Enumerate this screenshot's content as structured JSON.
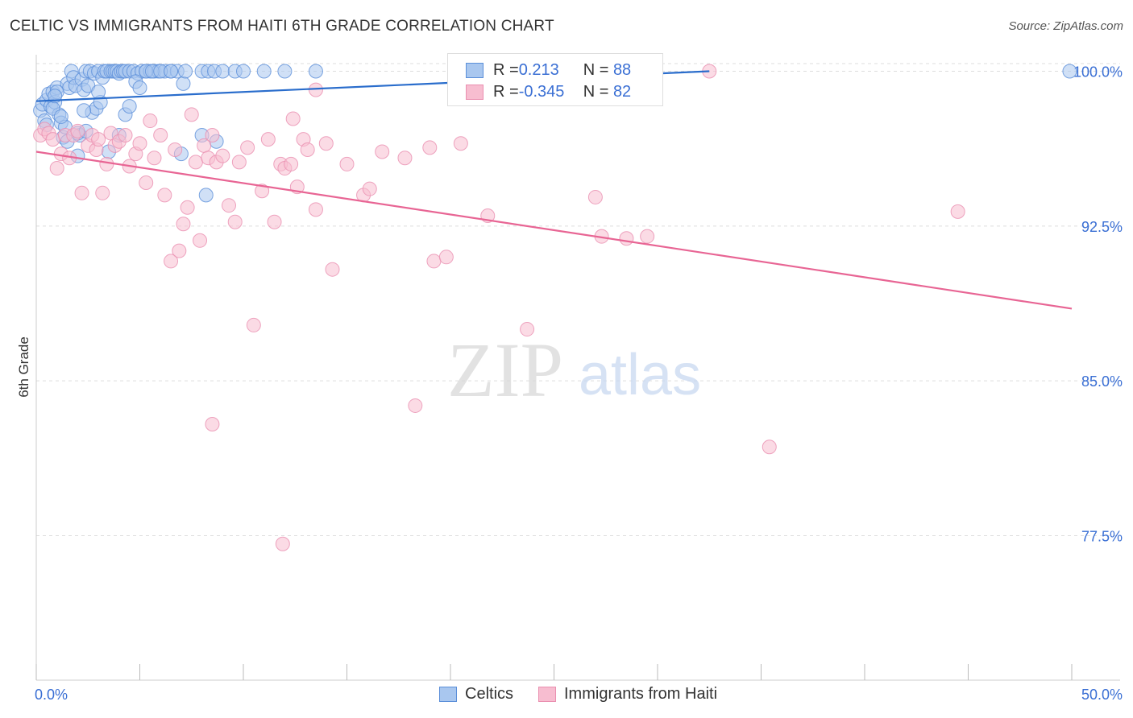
{
  "title": "CELTIC VS IMMIGRANTS FROM HAITI 6TH GRADE CORRELATION CHART",
  "source": "Source: ZipAtlas.com",
  "watermark": {
    "zip": "ZIP",
    "atlas": "atlas"
  },
  "colors": {
    "celtic_fill": "#a9c7ef",
    "celtic_stroke": "#5b8fd9",
    "celtic_line": "#2a6dcc",
    "haiti_fill": "#f7bdd0",
    "haiti_stroke": "#ea8fb0",
    "haiti_line": "#e86594",
    "axis_label": "#3a6fd4",
    "grid": "#dddddd"
  },
  "legend": {
    "rows": [
      {
        "r_label": "R =",
        "r_value": " 0.213",
        "n_label": "N =",
        "n_value": "88"
      },
      {
        "r_label": "R =",
        "r_value": "-0.345",
        "n_label": "N =",
        "n_value": "82"
      }
    ]
  },
  "chart_data": {
    "type": "scatter",
    "title": "CELTIC VS IMMIGRANTS FROM HAITI 6TH GRADE CORRELATION CHART",
    "xlabel": "",
    "ylabel": "6th Grade",
    "xlim": [
      0,
      50
    ],
    "ylim": [
      70.5,
      100.8
    ],
    "x_tick_labels": [
      "0.0%",
      "50.0%"
    ],
    "y_ticks": [
      77.5,
      85.0,
      92.5,
      100.0
    ],
    "y_tick_labels": [
      "77.5%",
      "85.0%",
      "92.5%",
      "100.0%"
    ],
    "grid": true,
    "legend_position": "top-center",
    "series": [
      {
        "name": "Celtics",
        "r": 0.213,
        "n": 88,
        "trend": {
          "x": [
            0,
            32.5
          ],
          "y": [
            98.55,
            100.0
          ]
        },
        "points": [
          [
            0.2,
            98.1
          ],
          [
            0.3,
            98.4
          ],
          [
            0.4,
            97.6
          ],
          [
            0.5,
            98.6
          ],
          [
            0.6,
            98.9
          ],
          [
            0.7,
            98.3
          ],
          [
            0.8,
            99.0
          ],
          [
            0.9,
            98.5
          ],
          [
            1.0,
            99.2
          ],
          [
            1.1,
            97.9
          ],
          [
            1.2,
            97.5
          ],
          [
            1.3,
            96.8
          ],
          [
            1.4,
            97.3
          ],
          [
            1.5,
            99.4
          ],
          [
            1.6,
            99.2
          ],
          [
            1.7,
            100.0
          ],
          [
            1.8,
            99.7
          ],
          [
            1.9,
            99.3
          ],
          [
            2.0,
            95.9
          ],
          [
            2.1,
            96.9
          ],
          [
            2.2,
            99.6
          ],
          [
            2.3,
            99.1
          ],
          [
            2.4,
            100.0
          ],
          [
            2.5,
            99.3
          ],
          [
            2.6,
            100.0
          ],
          [
            2.7,
            98.0
          ],
          [
            2.8,
            99.9
          ],
          [
            2.9,
            98.2
          ],
          [
            3.0,
            100.0
          ],
          [
            3.1,
            98.5
          ],
          [
            3.2,
            99.7
          ],
          [
            3.3,
            100.0
          ],
          [
            3.4,
            100.0
          ],
          [
            3.5,
            96.1
          ],
          [
            3.6,
            100.0
          ],
          [
            3.7,
            100.0
          ],
          [
            3.8,
            100.0
          ],
          [
            3.9,
            100.0
          ],
          [
            4.0,
            99.9
          ],
          [
            4.1,
            100.0
          ],
          [
            4.2,
            100.0
          ],
          [
            4.3,
            100.0
          ],
          [
            4.5,
            100.0
          ],
          [
            4.7,
            100.0
          ],
          [
            4.9,
            99.9
          ],
          [
            5.1,
            100.0
          ],
          [
            5.3,
            100.0
          ],
          [
            5.5,
            100.0
          ],
          [
            5.7,
            100.0
          ],
          [
            5.9,
            100.0
          ],
          [
            6.2,
            100.0
          ],
          [
            6.5,
            100.0
          ],
          [
            6.8,
            100.0
          ],
          [
            7.1,
            99.4
          ],
          [
            4.0,
            96.9
          ],
          [
            4.3,
            97.9
          ],
          [
            4.5,
            98.3
          ],
          [
            4.8,
            99.5
          ],
          [
            5.0,
            99.2
          ],
          [
            5.3,
            100.0
          ],
          [
            5.6,
            100.0
          ],
          [
            6.0,
            100.0
          ],
          [
            6.5,
            100.0
          ],
          [
            7.2,
            100.0
          ],
          [
            8.0,
            100.0
          ],
          [
            8.3,
            100.0
          ],
          [
            8.6,
            100.0
          ],
          [
            9.0,
            100.0
          ],
          [
            9.6,
            100.0
          ],
          [
            10.0,
            100.0
          ],
          [
            11.0,
            100.0
          ],
          [
            12.0,
            100.0
          ],
          [
            13.5,
            100.0
          ],
          [
            7.0,
            96.0
          ],
          [
            8.0,
            96.9
          ],
          [
            8.2,
            94.0
          ],
          [
            8.7,
            96.6
          ],
          [
            0.5,
            97.4
          ],
          [
            0.8,
            98.2
          ],
          [
            1.2,
            97.8
          ],
          [
            1.5,
            96.6
          ],
          [
            2.0,
            97.0
          ],
          [
            2.3,
            98.1
          ],
          [
            3.0,
            99.0
          ],
          [
            49.9,
            100.0
          ],
          [
            1.0,
            99.0
          ],
          [
            2.4,
            97.1
          ],
          [
            0.9,
            98.8
          ]
        ]
      },
      {
        "name": "Immigrants from Haiti",
        "r": -0.345,
        "n": 82,
        "trend": {
          "x": [
            0,
            50
          ],
          "y": [
            96.1,
            88.5
          ]
        },
        "points": [
          [
            0.2,
            96.9
          ],
          [
            0.4,
            97.2
          ],
          [
            0.6,
            97.0
          ],
          [
            0.8,
            96.7
          ],
          [
            1.0,
            95.3
          ],
          [
            1.2,
            96.0
          ],
          [
            1.4,
            96.9
          ],
          [
            1.6,
            95.8
          ],
          [
            1.8,
            96.9
          ],
          [
            2.0,
            97.1
          ],
          [
            2.2,
            94.1
          ],
          [
            2.5,
            96.4
          ],
          [
            2.7,
            96.9
          ],
          [
            2.9,
            96.2
          ],
          [
            3.0,
            96.7
          ],
          [
            3.2,
            94.1
          ],
          [
            3.4,
            95.5
          ],
          [
            3.6,
            97.0
          ],
          [
            3.8,
            96.4
          ],
          [
            4.0,
            96.6
          ],
          [
            4.3,
            96.9
          ],
          [
            4.5,
            95.4
          ],
          [
            4.8,
            96.0
          ],
          [
            5.0,
            96.5
          ],
          [
            5.3,
            94.6
          ],
          [
            5.5,
            97.6
          ],
          [
            5.7,
            95.8
          ],
          [
            6.0,
            96.9
          ],
          [
            6.2,
            94.0
          ],
          [
            6.5,
            90.8
          ],
          [
            6.7,
            96.2
          ],
          [
            6.9,
            91.3
          ],
          [
            7.1,
            92.6
          ],
          [
            7.3,
            93.4
          ],
          [
            7.5,
            97.9
          ],
          [
            7.7,
            95.6
          ],
          [
            7.9,
            91.8
          ],
          [
            8.1,
            96.4
          ],
          [
            8.3,
            95.8
          ],
          [
            8.5,
            96.9
          ],
          [
            8.7,
            95.6
          ],
          [
            9.0,
            95.9
          ],
          [
            9.3,
            93.5
          ],
          [
            9.6,
            92.7
          ],
          [
            9.8,
            95.6
          ],
          [
            10.2,
            96.3
          ],
          [
            10.5,
            87.7
          ],
          [
            10.9,
            94.2
          ],
          [
            11.2,
            96.7
          ],
          [
            11.5,
            92.7
          ],
          [
            11.8,
            95.5
          ],
          [
            12.0,
            95.3
          ],
          [
            12.3,
            95.5
          ],
          [
            12.6,
            94.4
          ],
          [
            12.9,
            96.7
          ],
          [
            13.1,
            96.2
          ],
          [
            13.5,
            93.3
          ],
          [
            14.0,
            96.5
          ],
          [
            14.3,
            90.4
          ],
          [
            15.0,
            95.5
          ],
          [
            15.8,
            94.0
          ],
          [
            16.1,
            94.3
          ],
          [
            16.7,
            96.1
          ],
          [
            17.8,
            95.8
          ],
          [
            18.3,
            83.8
          ],
          [
            19.0,
            96.3
          ],
          [
            19.2,
            90.8
          ],
          [
            19.8,
            91.0
          ],
          [
            20.5,
            96.5
          ],
          [
            21.8,
            93.0
          ],
          [
            23.7,
            87.5
          ],
          [
            27.0,
            93.9
          ],
          [
            27.3,
            92.0
          ],
          [
            28.5,
            91.9
          ],
          [
            29.5,
            92.0
          ],
          [
            32.5,
            100.0
          ],
          [
            35.4,
            81.8
          ],
          [
            44.5,
            93.2
          ],
          [
            8.5,
            82.9
          ],
          [
            11.9,
            77.1
          ],
          [
            13.5,
            99.1
          ],
          [
            12.4,
            97.7
          ]
        ]
      }
    ]
  },
  "bottom_legend": {
    "celtic_label": "Celtics",
    "haiti_label": "Immigrants from Haiti"
  }
}
